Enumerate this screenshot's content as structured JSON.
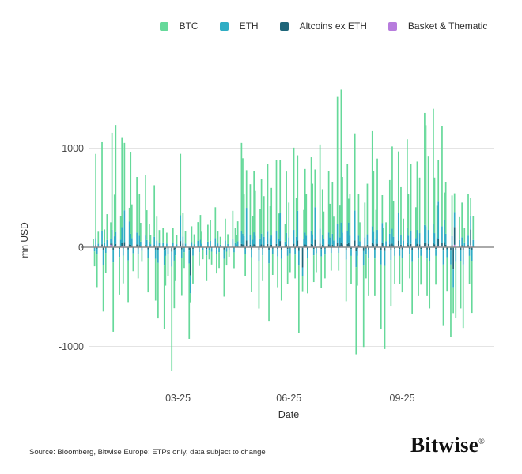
{
  "legend": {
    "items": [
      {
        "label": "BTC",
        "color": "#66d99a"
      },
      {
        "label": "ETH",
        "color": "#2fadc4"
      },
      {
        "label": "Altcoins ex ETH",
        "color": "#1e6579"
      },
      {
        "label": "Basket & Thematic",
        "color": "#b77cdd"
      }
    ]
  },
  "footer": {
    "source": "Source: Bloomberg, Bitwise Europe; ETPs only, data subject to change",
    "logo": "Bitwise",
    "logo_mark": "®"
  },
  "chart_data": {
    "type": "bar",
    "stacked": true,
    "title": "",
    "xlabel": "Date",
    "ylabel": "mn USD",
    "ylim": [
      -1300,
      1700
    ],
    "yticks": [
      1000,
      0,
      -1000
    ],
    "grid": "horizontal",
    "legend_position": "top",
    "x_unit": "days since 2024-12-23, daily crypto ETP net flows in mn USD",
    "xticks": [
      {
        "label": "03-25",
        "day": 68
      },
      {
        "label": "06-25",
        "day": 157
      },
      {
        "label": "09-25",
        "day": 248
      }
    ],
    "series_names": [
      "BTC",
      "ETH",
      "Altcoins ex ETH",
      "Basket & Thematic"
    ],
    "bars": [
      [
        0,
        60,
        15,
        4,
        2
      ],
      [
        1,
        -150,
        -35,
        -6,
        -1
      ],
      [
        2,
        850,
        70,
        18,
        4
      ],
      [
        3,
        -330,
        -60,
        -10,
        -2
      ],
      [
        4,
        120,
        30,
        6,
        1
      ],
      [
        7,
        900,
        130,
        25,
        5
      ],
      [
        8,
        -470,
        -150,
        -25,
        -3
      ],
      [
        9,
        130,
        40,
        8,
        2
      ],
      [
        10,
        -200,
        -45,
        -10,
        -1
      ],
      [
        11,
        260,
        60,
        12,
        2
      ],
      [
        14,
        170,
        45,
        12,
        25
      ],
      [
        15,
        980,
        140,
        30,
        6
      ],
      [
        16,
        -700,
        -120,
        -28,
        -4
      ],
      [
        17,
        420,
        90,
        18,
        3
      ],
      [
        18,
        1080,
        120,
        28,
        6
      ],
      [
        21,
        -380,
        -80,
        -15,
        -2
      ],
      [
        22,
        240,
        60,
        14,
        3
      ],
      [
        23,
        900,
        160,
        35,
        8
      ],
      [
        24,
        -280,
        -70,
        -12,
        -2
      ],
      [
        25,
        680,
        320,
        45,
        8
      ],
      [
        28,
        -420,
        -110,
        -20,
        -3
      ],
      [
        29,
        140,
        230,
        25,
        4
      ],
      [
        30,
        820,
        110,
        22,
        4
      ],
      [
        31,
        340,
        75,
        15,
        3
      ],
      [
        32,
        -180,
        -50,
        -10,
        -1
      ],
      [
        35,
        560,
        120,
        25,
        4
      ],
      [
        36,
        -240,
        -60,
        -12,
        -2
      ],
      [
        37,
        420,
        95,
        18,
        3
      ],
      [
        38,
        190,
        45,
        10,
        2
      ],
      [
        39,
        -110,
        -30,
        -6,
        -1
      ],
      [
        42,
        610,
        95,
        20,
        4
      ],
      [
        43,
        300,
        60,
        12,
        2
      ],
      [
        44,
        -350,
        -85,
        -18,
        -2
      ],
      [
        45,
        180,
        45,
        10,
        2
      ],
      [
        46,
        90,
        25,
        5,
        1
      ],
      [
        49,
        520,
        85,
        18,
        3
      ],
      [
        50,
        -420,
        -95,
        -20,
        -3
      ],
      [
        51,
        240,
        55,
        12,
        2
      ],
      [
        52,
        -560,
        -130,
        -25,
        -3
      ],
      [
        53,
        130,
        35,
        8,
        1
      ],
      [
        56,
        150,
        40,
        8,
        1
      ],
      [
        57,
        -640,
        -150,
        -30,
        -4
      ],
      [
        58,
        -300,
        -70,
        -15,
        -2
      ],
      [
        59,
        110,
        30,
        6,
        1
      ],
      [
        60,
        -220,
        -55,
        -12,
        -2
      ],
      [
        63,
        -1050,
        -150,
        -40,
        -5
      ],
      [
        64,
        150,
        35,
        8,
        1
      ],
      [
        65,
        -480,
        -110,
        -22,
        -3
      ],
      [
        66,
        -260,
        -65,
        -14,
        -2
      ],
      [
        67,
        90,
        25,
        5,
        1
      ],
      [
        70,
        620,
        260,
        55,
        8
      ],
      [
        71,
        -380,
        -90,
        -18,
        -2
      ],
      [
        72,
        240,
        70,
        35,
        3
      ],
      [
        73,
        -160,
        -40,
        -8,
        -1
      ],
      [
        74,
        130,
        30,
        6,
        1
      ],
      [
        77,
        -760,
        -130,
        -30,
        -4
      ],
      [
        78,
        -90,
        -180,
        -280,
        -5
      ],
      [
        79,
        160,
        40,
        10,
        2
      ],
      [
        80,
        -280,
        -70,
        -14,
        -2
      ],
      [
        81,
        100,
        25,
        5,
        1
      ],
      [
        84,
        190,
        50,
        12,
        2
      ],
      [
        85,
        -140,
        -40,
        -8,
        -1
      ],
      [
        86,
        250,
        60,
        14,
        2
      ],
      [
        87,
        120,
        30,
        6,
        1
      ],
      [
        88,
        -90,
        -25,
        -5,
        -1
      ],
      [
        91,
        -260,
        -65,
        -14,
        -2
      ],
      [
        92,
        170,
        45,
        10,
        2
      ],
      [
        93,
        -90,
        -25,
        -6,
        -1
      ],
      [
        94,
        210,
        50,
        12,
        2
      ],
      [
        95,
        -130,
        -35,
        -8,
        -1
      ],
      [
        98,
        310,
        75,
        16,
        3
      ],
      [
        99,
        -200,
        -50,
        -12,
        -2
      ],
      [
        100,
        120,
        30,
        8,
        1
      ],
      [
        101,
        -160,
        -40,
        -8,
        -1
      ],
      [
        102,
        80,
        20,
        5,
        1
      ],
      [
        105,
        -380,
        -95,
        -20,
        -3
      ],
      [
        106,
        220,
        55,
        12,
        2
      ],
      [
        107,
        -140,
        -35,
        -8,
        -1
      ],
      [
        108,
        100,
        25,
        6,
        1
      ],
      [
        109,
        -70,
        -20,
        -4,
        -1
      ],
      [
        112,
        280,
        70,
        15,
        3
      ],
      [
        113,
        -160,
        -40,
        -10,
        -1
      ],
      [
        114,
        150,
        40,
        8,
        1
      ],
      [
        115,
        90,
        25,
        5,
        1
      ],
      [
        116,
        200,
        50,
        10,
        2
      ],
      [
        119,
        890,
        130,
        28,
        5
      ],
      [
        120,
        760,
        110,
        24,
        4
      ],
      [
        121,
        420,
        90,
        20,
        3
      ],
      [
        122,
        -220,
        -55,
        -12,
        -2
      ],
      [
        123,
        380,
        330,
        60,
        8
      ],
      [
        126,
        510,
        100,
        22,
        4
      ],
      [
        127,
        -350,
        -80,
        -18,
        -2
      ],
      [
        128,
        240,
        60,
        14,
        2
      ],
      [
        129,
        620,
        120,
        26,
        5
      ],
      [
        130,
        450,
        95,
        20,
        3
      ],
      [
        133,
        -480,
        -110,
        -25,
        -3
      ],
      [
        134,
        300,
        70,
        16,
        3
      ],
      [
        135,
        550,
        110,
        24,
        4
      ],
      [
        136,
        -260,
        -65,
        -14,
        -2
      ],
      [
        137,
        410,
        85,
        18,
        3
      ],
      [
        140,
        680,
        125,
        28,
        5
      ],
      [
        141,
        -580,
        -130,
        -28,
        -4
      ],
      [
        142,
        320,
        75,
        16,
        3
      ],
      [
        143,
        480,
        95,
        20,
        4
      ],
      [
        144,
        -210,
        -55,
        -12,
        -2
      ],
      [
        147,
        720,
        130,
        28,
        5
      ],
      [
        148,
        -310,
        -75,
        -16,
        -2
      ],
      [
        149,
        260,
        65,
        14,
        2
      ],
      [
        150,
        540,
        280,
        55,
        8
      ],
      [
        151,
        -420,
        -95,
        -20,
        -3
      ],
      [
        154,
        180,
        45,
        10,
        2
      ],
      [
        155,
        620,
        115,
        25,
        4
      ],
      [
        156,
        -280,
        -70,
        -15,
        -2
      ],
      [
        157,
        350,
        80,
        18,
        3
      ],
      [
        158,
        -190,
        -50,
        -10,
        -1
      ],
      [
        161,
        830,
        140,
        30,
        5
      ],
      [
        162,
        -240,
        -60,
        -12,
        -2
      ],
      [
        163,
        390,
        85,
        18,
        3
      ],
      [
        164,
        560,
        300,
        60,
        8
      ],
      [
        165,
        -680,
        -150,
        -32,
        -4
      ],
      [
        168,
        -150,
        -90,
        -200,
        -3
      ],
      [
        169,
        290,
        70,
        15,
        2
      ],
      [
        170,
        640,
        120,
        26,
        4
      ],
      [
        171,
        420,
        95,
        20,
        3
      ],
      [
        172,
        -360,
        -85,
        -18,
        -2
      ],
      [
        175,
        740,
        135,
        28,
        5
      ],
      [
        176,
        510,
        105,
        22,
        4
      ],
      [
        177,
        -270,
        -65,
        -14,
        -2
      ],
      [
        178,
        380,
        330,
        65,
        10
      ],
      [
        179,
        -190,
        -50,
        -10,
        -1
      ],
      [
        182,
        850,
        150,
        32,
        5
      ],
      [
        183,
        -320,
        -75,
        -16,
        -2
      ],
      [
        184,
        460,
        100,
        22,
        4
      ],
      [
        185,
        280,
        65,
        14,
        2
      ],
      [
        186,
        -240,
        -60,
        -12,
        -2
      ],
      [
        189,
        620,
        120,
        26,
        4
      ],
      [
        190,
        340,
        80,
        16,
        3
      ],
      [
        191,
        -180,
        -45,
        -10,
        -1
      ],
      [
        192,
        520,
        110,
        22,
        4
      ],
      [
        193,
        240,
        55,
        12,
        2
      ],
      [
        196,
        1280,
        190,
        40,
        7
      ],
      [
        197,
        -180,
        -45,
        -10,
        -1
      ],
      [
        198,
        320,
        80,
        18,
        3
      ],
      [
        199,
        1340,
        200,
        42,
        8
      ],
      [
        200,
        560,
        120,
        25,
        4
      ],
      [
        203,
        -420,
        -100,
        -22,
        -3
      ],
      [
        204,
        680,
        130,
        28,
        5
      ],
      [
        205,
        240,
        200,
        45,
        5
      ],
      [
        206,
        420,
        95,
        20,
        3
      ],
      [
        207,
        -280,
        -70,
        -15,
        -2
      ],
      [
        210,
        780,
        300,
        60,
        10
      ],
      [
        211,
        -880,
        -160,
        -35,
        -5
      ],
      [
        212,
        -300,
        -70,
        -15,
        -2
      ],
      [
        213,
        420,
        95,
        20,
        3
      ],
      [
        214,
        190,
        50,
        10,
        2
      ],
      [
        217,
        -820,
        -150,
        -32,
        -4
      ],
      [
        218,
        350,
        80,
        18,
        3
      ],
      [
        219,
        -240,
        -60,
        -12,
        -2
      ],
      [
        220,
        510,
        105,
        22,
        4
      ],
      [
        221,
        -380,
        -90,
        -20,
        -3
      ],
      [
        224,
        960,
        170,
        36,
        6
      ],
      [
        225,
        610,
        125,
        26,
        4
      ],
      [
        226,
        -380,
        -90,
        -20,
        -3
      ],
      [
        227,
        290,
        70,
        15,
        2
      ],
      [
        228,
        720,
        140,
        30,
        5
      ],
      [
        231,
        -650,
        -140,
        -30,
        -4
      ],
      [
        232,
        280,
        200,
        42,
        4
      ],
      [
        233,
        150,
        40,
        8,
        1
      ],
      [
        234,
        -840,
        -150,
        -32,
        -5
      ],
      [
        235,
        190,
        50,
        10,
        2
      ],
      [
        238,
        540,
        110,
        24,
        4
      ],
      [
        239,
        -460,
        -105,
        -22,
        -3
      ],
      [
        240,
        830,
        150,
        32,
        5
      ],
      [
        241,
        360,
        85,
        18,
        3
      ],
      [
        242,
        -280,
        -70,
        -15,
        -2
      ],
      [
        245,
        620,
        280,
        58,
        9
      ],
      [
        246,
        -280,
        -70,
        -15,
        -2
      ],
      [
        247,
        480,
        100,
        22,
        4
      ],
      [
        248,
        -350,
        -85,
        -18,
        -2
      ],
      [
        249,
        220,
        55,
        12,
        2
      ],
      [
        252,
        890,
        160,
        34,
        6
      ],
      [
        253,
        420,
        95,
        20,
        3
      ],
      [
        254,
        -240,
        -60,
        -12,
        -2
      ],
      [
        255,
        680,
        130,
        28,
        5
      ],
      [
        256,
        -520,
        -120,
        -26,
        -3
      ],
      [
        259,
        310,
        75,
        16,
        3
      ],
      [
        260,
        690,
        140,
        30,
        5
      ],
      [
        261,
        -380,
        -90,
        -20,
        -3
      ],
      [
        262,
        560,
        115,
        24,
        4
      ],
      [
        263,
        -290,
        -70,
        -15,
        -2
      ],
      [
        266,
        1130,
        180,
        38,
        7
      ],
      [
        267,
        1020,
        170,
        36,
        6
      ],
      [
        268,
        -380,
        -90,
        -20,
        -3
      ],
      [
        269,
        740,
        140,
        30,
        5
      ],
      [
        270,
        -480,
        -110,
        -24,
        -3
      ],
      [
        273,
        1160,
        190,
        40,
        7
      ],
      [
        274,
        560,
        115,
        24,
        4
      ],
      [
        275,
        -290,
        -70,
        -15,
        -2
      ],
      [
        276,
        320,
        80,
        16,
        3
      ],
      [
        277,
        420,
        380,
        70,
        10
      ],
      [
        280,
        1010,
        170,
        36,
        6
      ],
      [
        281,
        -620,
        -140,
        -30,
        -4
      ],
      [
        282,
        280,
        220,
        48,
        5
      ],
      [
        283,
        520,
        110,
        22,
        4
      ],
      [
        284,
        -340,
        -80,
        -18,
        -2
      ],
      [
        287,
        -730,
        -140,
        -30,
        -4
      ],
      [
        288,
        410,
        90,
        20,
        3
      ],
      [
        289,
        -260,
        -180,
        -220,
        -4
      ],
      [
        290,
        190,
        150,
        180,
        25
      ],
      [
        291,
        -560,
        -120,
        -26,
        -3
      ],
      [
        294,
        230,
        60,
        12,
        2
      ],
      [
        295,
        -480,
        -110,
        -24,
        -3
      ],
      [
        296,
        350,
        80,
        18,
        3
      ],
      [
        297,
        -640,
        -140,
        -30,
        -4
      ],
      [
        298,
        150,
        40,
        8,
        1
      ],
      [
        301,
        420,
        95,
        20,
        3
      ],
      [
        302,
        -280,
        -70,
        -15,
        -2
      ],
      [
        303,
        180,
        140,
        160,
        20
      ],
      [
        304,
        -520,
        -115,
        -24,
        -3
      ],
      [
        305,
        240,
        60,
        12,
        2
      ]
    ]
  }
}
